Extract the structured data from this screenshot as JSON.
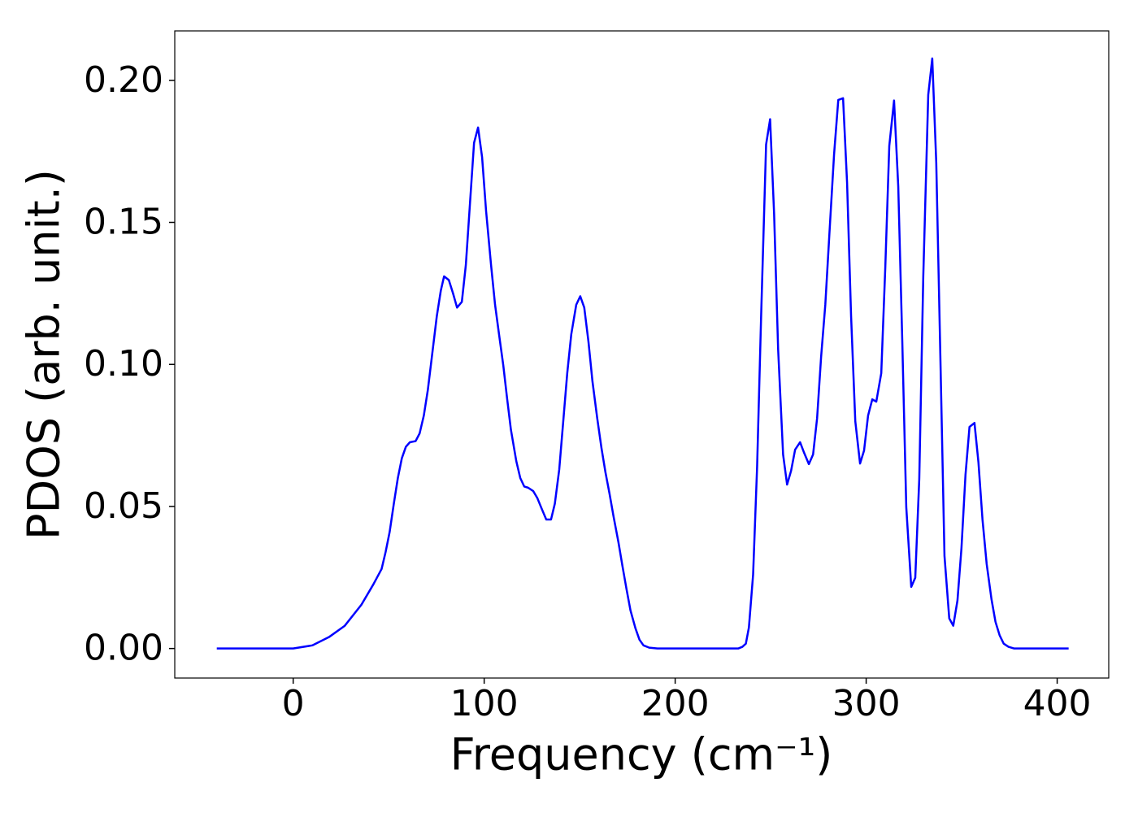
{
  "chart_data": {
    "type": "line",
    "xlabel": "Frequency (cm⁻¹)",
    "ylabel": "PDOS (arb. unit.)",
    "xlim": [
      -62,
      427
    ],
    "ylim": [
      -0.0104,
      0.2174
    ],
    "xticks": [
      0,
      100,
      200,
      300,
      400
    ],
    "yticks": [
      {
        "value": 0,
        "label": "0.00"
      },
      {
        "value": 0.05,
        "label": "0.05"
      },
      {
        "value": 0.1,
        "label": "0.10"
      },
      {
        "value": 0.15,
        "label": "0.15"
      },
      {
        "value": 0.2,
        "label": "0.20"
      }
    ],
    "grid": false,
    "x": [
      -40,
      0,
      10,
      18.7,
      27,
      35.7,
      42,
      46.3,
      48.4,
      50.5,
      52.7,
      54.8,
      56.9,
      59,
      61.1,
      64.1,
      66.2,
      68.4,
      70.5,
      72.6,
      75.2,
      77.3,
      79,
      81.5,
      83.7,
      85.8,
      88.3,
      90.4,
      92.6,
      94.7,
      96.8,
      98.9,
      101,
      103.6,
      105.7,
      107.9,
      110,
      112,
      114,
      116.8,
      118.9,
      121,
      123,
      125.7,
      127.8,
      130,
      132.5,
      135,
      137,
      139.3,
      141.4,
      143.5,
      145.6,
      148.2,
      150.3,
      152.4,
      154.6,
      156.7,
      159.2,
      161.4,
      163.5,
      165.6,
      167.7,
      170.3,
      172.4,
      174.5,
      176.6,
      179.2,
      181.3,
      183.4,
      186.4,
      190.7,
      233,
      235.2,
      237,
      238.6,
      240.8,
      242.9,
      245,
      247.6,
      249.7,
      251.8,
      253.9,
      256.5,
      258.6,
      260.7,
      262.8,
      265.4,
      267.5,
      270,
      272.2,
      274.3,
      276.4,
      278.6,
      280.7,
      283.2,
      285.4,
      287.9,
      290,
      292.1,
      294.3,
      296.8,
      298.9,
      301,
      303.2,
      305.3,
      307.9,
      310,
      312.1,
      314.6,
      316.8,
      318.9,
      321,
      323.6,
      325.7,
      327.8,
      329.9,
      332.5,
      334.6,
      336.7,
      338.9,
      341,
      343.5,
      345.6,
      347.8,
      349.9,
      352,
      354.1,
      356.7,
      358.8,
      360.9,
      363.1,
      365.6,
      367.7,
      369.9,
      372,
      374.5,
      377.5,
      406
    ],
    "series": [
      {
        "color": "#0000ff",
        "values": [
          0,
          0,
          0.0011,
          0.004,
          0.008,
          0.0154,
          0.0226,
          0.028,
          0.034,
          0.041,
          0.051,
          0.06,
          0.067,
          0.071,
          0.0726,
          0.073,
          0.0757,
          0.082,
          0.091,
          0.1026,
          0.117,
          0.126,
          0.131,
          0.1297,
          0.125,
          0.12,
          0.122,
          0.135,
          0.157,
          0.178,
          0.1834,
          0.173,
          0.154,
          0.135,
          0.121,
          0.11,
          0.0997,
          0.088,
          0.077,
          0.066,
          0.06,
          0.057,
          0.0566,
          0.0554,
          0.053,
          0.0494,
          0.0454,
          0.0454,
          0.051,
          0.063,
          0.08,
          0.097,
          0.1106,
          0.121,
          0.124,
          0.12,
          0.108,
          0.094,
          0.081,
          0.0706,
          0.062,
          0.0546,
          0.0466,
          0.0374,
          0.029,
          0.021,
          0.0134,
          0.0071,
          0.0031,
          0.0011,
          0.0003,
          0,
          0,
          0.0006,
          0.0017,
          0.0074,
          0.026,
          0.064,
          0.117,
          0.1774,
          0.1863,
          0.153,
          0.1054,
          0.0683,
          0.0577,
          0.0626,
          0.07,
          0.0726,
          0.0689,
          0.0649,
          0.0683,
          0.081,
          0.1026,
          0.121,
          0.1454,
          0.174,
          0.1931,
          0.1937,
          0.164,
          0.117,
          0.08,
          0.0651,
          0.0697,
          0.082,
          0.0877,
          0.0869,
          0.0969,
          0.134,
          0.1769,
          0.1929,
          0.1626,
          0.1083,
          0.0497,
          0.0217,
          0.0249,
          0.0597,
          0.131,
          0.1949,
          0.2077,
          0.171,
          0.101,
          0.0326,
          0.0106,
          0.008,
          0.0169,
          0.0354,
          0.0611,
          0.078,
          0.0794,
          0.0654,
          0.0454,
          0.0297,
          0.0174,
          0.0094,
          0.0046,
          0.0017,
          0.0006,
          0,
          0
        ]
      }
    ]
  }
}
